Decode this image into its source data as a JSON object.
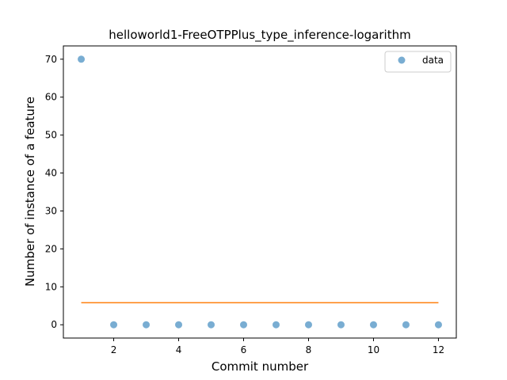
{
  "chart_data": {
    "type": "scatter",
    "title": "helloworld1-FreeOTPPlus_type_inference-logarithm",
    "xlabel": "Commit number",
    "ylabel": "Number of instance of a feature",
    "xlim": [
      0.45,
      12.55
    ],
    "ylim": [
      -3.5,
      73.5
    ],
    "xticks": [
      2,
      4,
      6,
      8,
      10,
      12
    ],
    "yticks": [
      0,
      10,
      20,
      30,
      40,
      50,
      60,
      70
    ],
    "grid": false,
    "legend_position": "top-right",
    "series": [
      {
        "name": "data",
        "kind": "scatter",
        "color": "#1f77b4",
        "x": [
          1,
          2,
          3,
          4,
          5,
          6,
          7,
          8,
          9,
          10,
          11,
          12
        ],
        "y": [
          70,
          0,
          0,
          0,
          0,
          0,
          0,
          0,
          0,
          0,
          0,
          0
        ]
      },
      {
        "kind": "line",
        "color": "#ff7f0e",
        "x": [
          1,
          12
        ],
        "y": [
          5.8,
          5.8
        ]
      }
    ]
  }
}
